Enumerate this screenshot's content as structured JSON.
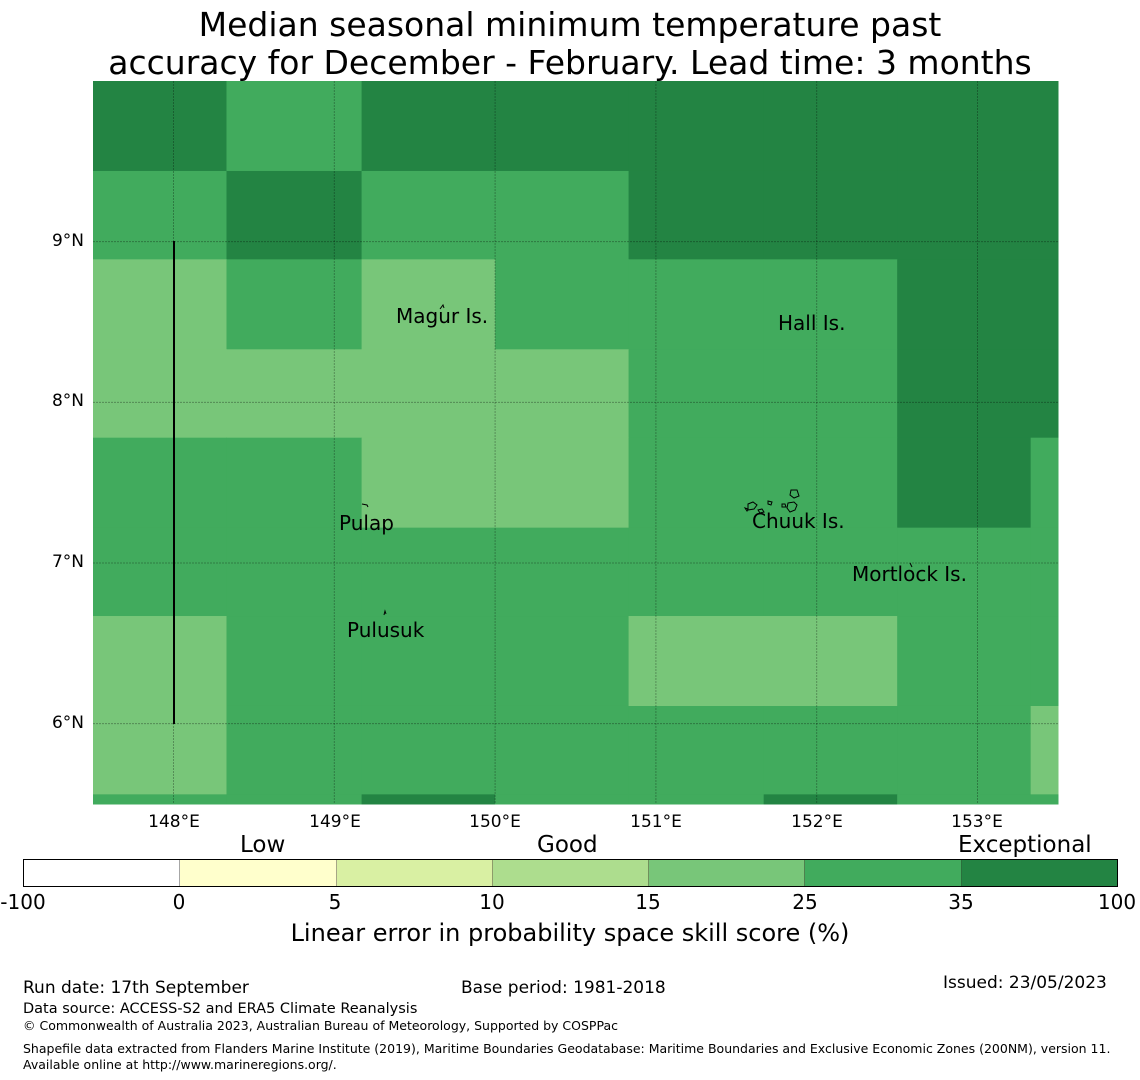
{
  "title": {
    "line1": "Median seasonal minimum temperature past",
    "line2": "accuracy for December - February. Lead time: 3 months"
  },
  "map": {
    "lon_range": [
      147.5,
      153.5
    ],
    "lat_range": [
      5.5,
      10.0
    ],
    "lat_labels": [
      "9°N",
      "8°N",
      "7°N",
      "6°N"
    ],
    "lon_labels": [
      "148°E",
      "149°E",
      "150°E",
      "151°E",
      "152°E",
      "153°E"
    ],
    "grid_cells": {
      "lon_edges": [
        147.5,
        148.33,
        149.17,
        150.0,
        150.83,
        151.67,
        152.5,
        153.33,
        153.5
      ],
      "lat_edges": [
        10.0,
        9.44,
        8.89,
        8.33,
        7.78,
        7.22,
        6.67,
        6.11,
        5.56,
        5.5
      ],
      "classes": [
        [
          6,
          5,
          6,
          6,
          6,
          6,
          6,
          6
        ],
        [
          5,
          6,
          5,
          5,
          6,
          6,
          6,
          6
        ],
        [
          4,
          5,
          4,
          5,
          5,
          5,
          6,
          6
        ],
        [
          4,
          4,
          4,
          4,
          5,
          5,
          6,
          6
        ],
        [
          5,
          5,
          4,
          4,
          5,
          5,
          6,
          5
        ],
        [
          5,
          5,
          5,
          5,
          5,
          5,
          5,
          5
        ],
        [
          4,
          5,
          5,
          5,
          4,
          4,
          5,
          5
        ],
        [
          4,
          5,
          5,
          5,
          5,
          5,
          5,
          4
        ],
        [
          5,
          5,
          6,
          5,
          5,
          6,
          5,
          5
        ]
      ]
    },
    "places": [
      {
        "name": "Magur Is."
      },
      {
        "name": "Hall Is."
      },
      {
        "name": "Pulap"
      },
      {
        "name": "Chuuk Is."
      },
      {
        "name": "Mortlock Is."
      },
      {
        "name": "Pulusuk"
      }
    ]
  },
  "colorbar": {
    "categories": {
      "low": "Low",
      "good": "Good",
      "exceptional": "Exceptional"
    },
    "ticks": [
      "-100",
      "0",
      "5",
      "10",
      "15",
      "25",
      "35",
      "100"
    ],
    "colors": [
      "#ffffff",
      "#ffffcc",
      "#d9f0a3",
      "#addd8e",
      "#78c679",
      "#41ab5d",
      "#238443"
    ],
    "title": "Linear error in probability space skill score (%)"
  },
  "footer": {
    "run_date": "Run date: 17th September",
    "base_period": "Base period: 1981-2018",
    "issued": "Issued: 23/05/2023",
    "data_source": "Data source: ACCESS-S2 and ERA5 Climate Reanalysis",
    "copyright": "© Commonwealth of Australia 2023, Australian Bureau of Meteorology, Supported by COSPPac",
    "shapefile_note": "Shapefile data extracted from Flanders Marine Institute (2019), Maritime Boundaries Geodatabase: Maritime Boundaries and Exclusive Economic Zones (200NM), version 11. Available online at http://www.marineregions.org/."
  }
}
